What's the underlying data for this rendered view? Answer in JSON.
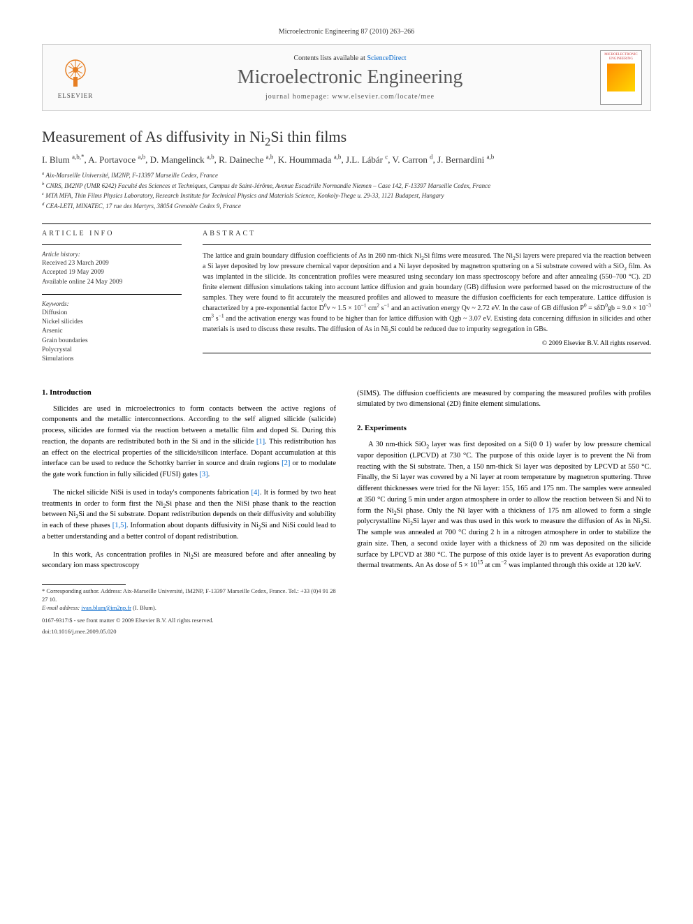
{
  "header": {
    "citation": "Microelectronic Engineering 87 (2010) 263–266"
  },
  "journal_box": {
    "elsevier_label": "ELSEVIER",
    "contents_prefix": "Contents lists available at ",
    "contents_link": "ScienceDirect",
    "journal_name": "Microelectronic Engineering",
    "homepage_label": "journal homepage: www.elsevier.com/locate/mee",
    "cover_title": "MICROELECTRONIC ENGINEERING"
  },
  "article": {
    "title_html": "Measurement of As diffusivity in Ni<sub>2</sub>Si thin films",
    "authors_html": "I. Blum <sup>a,b,*</sup>, A. Portavoce <sup>a,b</sup>, D. Mangelinck <sup>a,b</sup>, R. Daineche <sup>a,b</sup>, K. Hoummada <sup>a,b</sup>, J.L. Lábár <sup>c</sup>, V. Carron <sup>d</sup>, J. Bernardini <sup>a,b</sup>",
    "affiliations": [
      "<sup>a</sup> Aix-Marseille Université, IM2NP, F-13397 Marseille Cedex, France",
      "<sup>b</sup> CNRS, IM2NP (UMR 6242) Faculté des Sciences et Techniques, Campus de Saint-Jérôme, Avenue Escadrille Normandie Niemen – Case 142, F-13397 Marseille Cedex, France",
      "<sup>c</sup> MTA MFA, Thin Films Physics Laboratory, Research Institute for Technical Physics and Materials Science, Konkoly-Thege u. 29-33, 1121 Budapest, Hungary",
      "<sup>d</sup> CEA-LETI, MINATEC, 17 rue des Martyrs, 38054 Grenoble Cedex 9, France"
    ]
  },
  "article_info": {
    "heading": "ARTICLE INFO",
    "history_label": "Article history:",
    "history_lines": [
      "Received 23 March 2009",
      "Accepted 19 May 2009",
      "Available online 24 May 2009"
    ],
    "keywords_label": "Keywords:",
    "keywords": [
      "Diffusion",
      "Nickel silicides",
      "Arsenic",
      "Grain boundaries",
      "Polycrystal",
      "Simulations"
    ]
  },
  "abstract": {
    "heading": "ABSTRACT",
    "text_html": "The lattice and grain boundary diffusion coefficients of As in 260 nm-thick Ni<sub>2</sub>Si films were measured. The Ni<sub>2</sub>Si layers were prepared via the reaction between a Si layer deposited by low pressure chemical vapor deposition and a Ni layer deposited by magnetron sputtering on a Si substrate covered with a SiO<sub>2</sub> film. As was implanted in the silicide. Its concentration profiles were measured using secondary ion mass spectroscopy before and after annealing (550–700 °C). 2D finite element diffusion simulations taking into account lattice diffusion and grain boundary (GB) diffusion were performed based on the microstructure of the samples. They were found to fit accurately the measured profiles and allowed to measure the diffusion coefficients for each temperature. Lattice diffusion is characterized by a pre-exponential factor D<sup>0</sup>v ~ 1.5 × 10<sup>−1</sup> cm<sup>2</sup> s<sup>−1</sup> and an activation energy Qv ~ 2.72 eV. In the case of GB diffusion P<sup>0</sup> = sδD<sup>0</sup>gb = 9.0 × 10<sup>−3</sup> cm<sup>3</sup> s<sup>−1</sup> and the activation energy was found to be higher than for lattice diffusion with Qgb ~ 3.07 eV. Existing data concerning diffusion in silicides and other materials is used to discuss these results. The diffusion of As in Ni<sub>2</sub>Si could be reduced due to impurity segregation in GBs.",
    "copyright": "© 2009 Elsevier B.V. All rights reserved."
  },
  "body": {
    "intro_heading": "1. Introduction",
    "intro_paragraphs_html": [
      "Silicides are used in microelectronics to form contacts between the active regions of components and the metallic interconnections. According to the self aligned silicide (salicide) process, silicides are formed via the reaction between a metallic film and doped Si. During this reaction, the dopants are redistributed both in the Si and in the silicide <span class=\"ref-link\">[1]</span>. This redistribution has an effect on the electrical properties of the silicide/silicon interface. Dopant accumulation at this interface can be used to reduce the Schottky barrier in source and drain regions <span class=\"ref-link\">[2]</span> or to modulate the gate work function in fully silicided (FUSI) gates <span class=\"ref-link\">[3]</span>.",
      "The nickel silicide NiSi is used in today's components fabrication <span class=\"ref-link\">[4]</span>. It is formed by two heat treatments in order to form first the Ni<sub>2</sub>Si phase and then the NiSi phase thank to the reaction between Ni<sub>2</sub>Si and the Si substrate. Dopant redistribution depends on their diffusivity and solubility in each of these phases <span class=\"ref-link\">[1,5]</span>. Information about dopants diffusivity in Ni<sub>2</sub>Si and NiSi could lead to a better understanding and a better control of dopant redistribution.",
      "In this work, As concentration profiles in Ni<sub>2</sub>Si are measured before and after annealing by secondary ion mass spectroscopy"
    ],
    "col2_top_html": "(SIMS). The diffusion coefficients are measured by comparing the measured profiles with profiles simulated by two dimensional (2D) finite element simulations.",
    "experiments_heading": "2. Experiments",
    "experiments_html": "A 30 nm-thick SiO<sub>2</sub> layer was first deposited on a Si(0 0 1) wafer by low pressure chemical vapor deposition (LPCVD) at 730 °C. The purpose of this oxide layer is to prevent the Ni from reacting with the Si substrate. Then, a 150 nm-thick Si layer was deposited by LPCVD at 550 °C. Finally, the Si layer was covered by a Ni layer at room temperature by magnetron sputtering. Three different thicknesses were tried for the Ni layer: 155, 165 and 175 nm. The samples were annealed at 350 °C during 5 min under argon atmosphere in order to allow the reaction between Si and Ni to form the Ni<sub>2</sub>Si phase. Only the Ni layer with a thickness of 175 nm allowed to form a single polycrystalline Ni<sub>2</sub>Si layer and was thus used in this work to measure the diffusion of As in Ni<sub>2</sub>Si. The sample was annealed at 700 °C during 2 h in a nitrogen atmosphere in order to stabilize the grain size. Then, a second oxide layer with a thickness of 20 nm was deposited on the silicide surface by LPCVD at 380 °C. The purpose of this oxide layer is to prevent As evaporation during thermal treatments. An As dose of 5 × 10<sup>15</sup> at cm<sup>−2</sup> was implanted through this oxide at 120 keV."
  },
  "footnotes": {
    "corresponding_html": "* Corresponding author. Address: Aix-Marseille Université, IM2NP, F-13397 Marseille Cedex, France. Tel.: +33 (0)4 91 28 27 10.",
    "email_label": "E-mail address:",
    "email": "ivan.blum@im2np.fr",
    "email_suffix": "(I. Blum).",
    "issn_line": "0167-9317/$ - see front matter © 2009 Elsevier B.V. All rights reserved.",
    "doi": "doi:10.1016/j.mee.2009.05.020"
  },
  "colors": {
    "link": "#0066cc",
    "text": "#333333",
    "rule": "#000000"
  }
}
